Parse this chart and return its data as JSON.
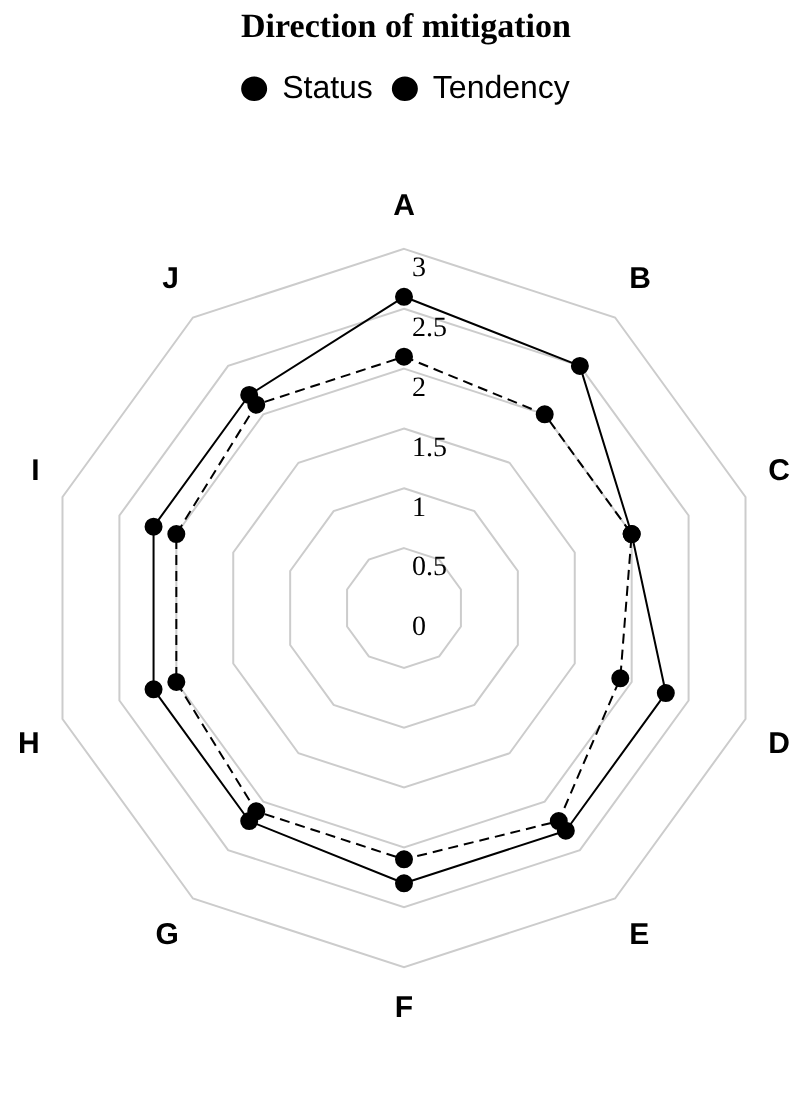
{
  "chart_data": {
    "type": "radar",
    "title": "Direction of mitigation",
    "categories": [
      "A",
      "B",
      "C",
      "D",
      "E",
      "F",
      "G",
      "H",
      "I",
      "J"
    ],
    "series": [
      {
        "name": "Status",
        "color": "#000000",
        "line_style": "solid",
        "values": [
          2.6,
          2.5,
          2.0,
          2.3,
          2.3,
          2.3,
          2.2,
          2.2,
          2.2,
          2.2
        ]
      },
      {
        "name": "Tendency",
        "color": "#000000",
        "line_style": "dashed",
        "values": [
          2.1,
          2.0,
          2.0,
          1.9,
          2.2,
          2.1,
          2.1,
          2.0,
          2.0,
          2.1
        ]
      }
    ],
    "ylim": [
      0,
      3
    ],
    "yticks": [
      0,
      0.5,
      1,
      1.5,
      2,
      2.5,
      3
    ],
    "grid": true,
    "legend": "top",
    "marker": "circle"
  }
}
